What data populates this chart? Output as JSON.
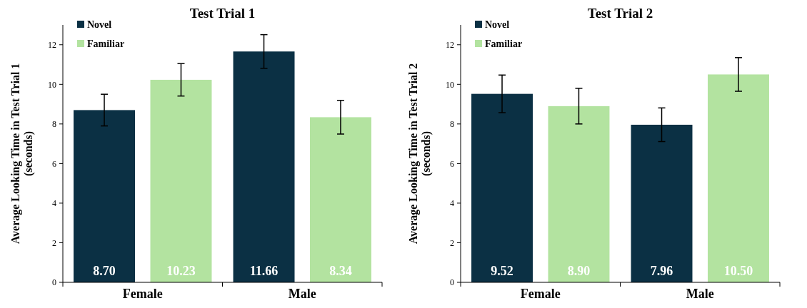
{
  "chart_data": [
    {
      "type": "bar",
      "title": "Test Trial 1",
      "ylabel": "Average Looking Time in Test Trial 1 (seconds)",
      "categories": [
        "Female",
        "Male"
      ],
      "series": [
        {
          "name": "Novel",
          "color": "#0b3044",
          "values": [
            8.7,
            11.66
          ],
          "errors": [
            0.8,
            0.85
          ],
          "value_labels": [
            "8.70",
            "11.66"
          ]
        },
        {
          "name": "Familiar",
          "color": "#b3e3a0",
          "values": [
            10.23,
            8.34
          ],
          "errors": [
            0.82,
            0.85
          ],
          "value_labels": [
            "10.23",
            "8.34"
          ]
        }
      ],
      "ylim": [
        0,
        13
      ],
      "yticks": [
        0,
        2,
        4,
        6,
        8,
        10,
        12
      ],
      "legend": "top left",
      "grid": false
    },
    {
      "type": "bar",
      "title": "Test Trial 2",
      "ylabel": "Average Looking Time in Test Trial 2 (seconds)",
      "categories": [
        "Female",
        "Male"
      ],
      "series": [
        {
          "name": "Novel",
          "color": "#0b3044",
          "values": [
            9.52,
            7.96
          ],
          "errors": [
            0.95,
            0.85
          ],
          "value_labels": [
            "9.52",
            "7.96"
          ]
        },
        {
          "name": "Familiar",
          "color": "#b3e3a0",
          "values": [
            8.9,
            10.5
          ],
          "errors": [
            0.9,
            0.85
          ],
          "value_labels": [
            "8.90",
            "10.50"
          ]
        }
      ],
      "ylim": [
        0,
        13
      ],
      "yticks": [
        0,
        2,
        4,
        6,
        8,
        10,
        12
      ],
      "legend": "top left",
      "grid": false
    }
  ]
}
